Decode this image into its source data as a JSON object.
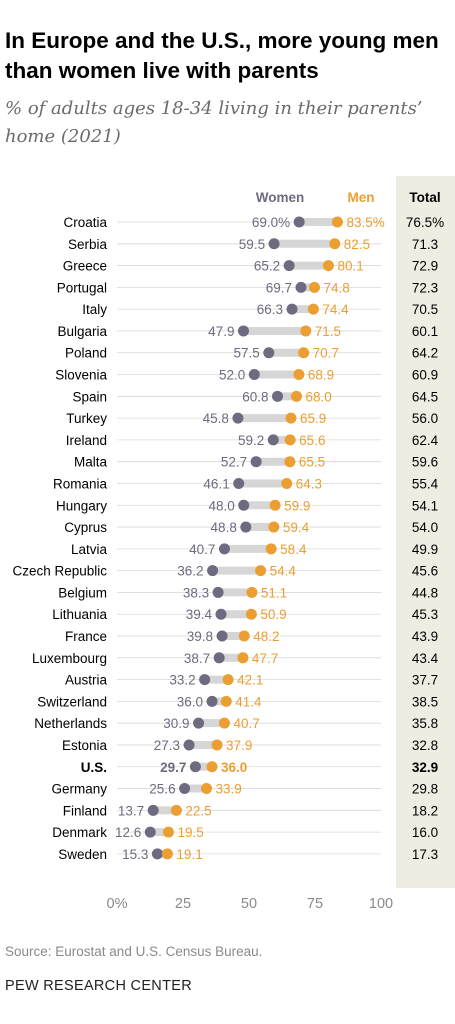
{
  "title": "In Europe and the U.S., more young men than women live with parents",
  "subtitle": "% of adults ages 18-34 living in their parents’ home (2021)",
  "source": "Source: Eurostat and U.S. Census Bureau.",
  "brand": "PEW RESEARCH CENTER",
  "colors": {
    "women": "#6e6a7f",
    "men": "#eb9f33",
    "connector": "#d6d6d6",
    "total_bg": "#efece1",
    "grid": "#d9d9d9",
    "axis_text": "#8a8a8a",
    "label_text": "#000000"
  },
  "chart_data": {
    "type": "dot",
    "legend": {
      "women": "Women",
      "men": "Men",
      "total": "Total"
    },
    "x_ticks": [
      {
        "value": 0,
        "label": "0%"
      },
      {
        "value": 25,
        "label": "25"
      },
      {
        "value": 50,
        "label": "50"
      },
      {
        "value": 75,
        "label": "75"
      },
      {
        "value": 100,
        "label": "100"
      }
    ],
    "xlim": [
      0,
      100
    ],
    "rows": [
      {
        "country": "Croatia",
        "women": 69.0,
        "men": 83.5,
        "total": 76.5,
        "women_label": "69.0%",
        "men_label": "83.5%",
        "total_label": "76.5%",
        "bold": false
      },
      {
        "country": "Serbia",
        "women": 59.5,
        "men": 82.5,
        "total": 71.3,
        "women_label": "59.5",
        "men_label": "82.5",
        "total_label": "71.3",
        "bold": false
      },
      {
        "country": "Greece",
        "women": 65.2,
        "men": 80.1,
        "total": 72.9,
        "women_label": "65.2",
        "men_label": "80.1",
        "total_label": "72.9",
        "bold": false
      },
      {
        "country": "Portugal",
        "women": 69.7,
        "men": 74.8,
        "total": 72.3,
        "women_label": "69.7",
        "men_label": "74.8",
        "total_label": "72.3",
        "bold": false
      },
      {
        "country": "Italy",
        "women": 66.3,
        "men": 74.4,
        "total": 70.5,
        "women_label": "66.3",
        "men_label": "74.4",
        "total_label": "70.5",
        "bold": false
      },
      {
        "country": "Bulgaria",
        "women": 47.9,
        "men": 71.5,
        "total": 60.1,
        "women_label": "47.9",
        "men_label": "71.5",
        "total_label": "60.1",
        "bold": false
      },
      {
        "country": "Poland",
        "women": 57.5,
        "men": 70.7,
        "total": 64.2,
        "women_label": "57.5",
        "men_label": "70.7",
        "total_label": "64.2",
        "bold": false
      },
      {
        "country": "Slovenia",
        "women": 52.0,
        "men": 68.9,
        "total": 60.9,
        "women_label": "52.0",
        "men_label": "68.9",
        "total_label": "60.9",
        "bold": false
      },
      {
        "country": "Spain",
        "women": 60.8,
        "men": 68.0,
        "total": 64.5,
        "women_label": "60.8",
        "men_label": "68.0",
        "total_label": "64.5",
        "bold": false
      },
      {
        "country": "Turkey",
        "women": 45.8,
        "men": 65.9,
        "total": 56.0,
        "women_label": "45.8",
        "men_label": "65.9",
        "total_label": "56.0",
        "bold": false
      },
      {
        "country": "Ireland",
        "women": 59.2,
        "men": 65.6,
        "total": 62.4,
        "women_label": "59.2",
        "men_label": "65.6",
        "total_label": "62.4",
        "bold": false
      },
      {
        "country": "Malta",
        "women": 52.7,
        "men": 65.5,
        "total": 59.6,
        "women_label": "52.7",
        "men_label": "65.5",
        "total_label": "59.6",
        "bold": false
      },
      {
        "country": "Romania",
        "women": 46.1,
        "men": 64.3,
        "total": 55.4,
        "women_label": "46.1",
        "men_label": "64.3",
        "total_label": "55.4",
        "bold": false
      },
      {
        "country": "Hungary",
        "women": 48.0,
        "men": 59.9,
        "total": 54.1,
        "women_label": "48.0",
        "men_label": "59.9",
        "total_label": "54.1",
        "bold": false
      },
      {
        "country": "Cyprus",
        "women": 48.8,
        "men": 59.4,
        "total": 54.0,
        "women_label": "48.8",
        "men_label": "59.4",
        "total_label": "54.0",
        "bold": false
      },
      {
        "country": "Latvia",
        "women": 40.7,
        "men": 58.4,
        "total": 49.9,
        "women_label": "40.7",
        "men_label": "58.4",
        "total_label": "49.9",
        "bold": false
      },
      {
        "country": "Czech Republic",
        "women": 36.2,
        "men": 54.4,
        "total": 45.6,
        "women_label": "36.2",
        "men_label": "54.4",
        "total_label": "45.6",
        "bold": false
      },
      {
        "country": "Belgium",
        "women": 38.3,
        "men": 51.1,
        "total": 44.8,
        "women_label": "38.3",
        "men_label": "51.1",
        "total_label": "44.8",
        "bold": false
      },
      {
        "country": "Lithuania",
        "women": 39.4,
        "men": 50.9,
        "total": 45.3,
        "women_label": "39.4",
        "men_label": "50.9",
        "total_label": "45.3",
        "bold": false
      },
      {
        "country": "France",
        "women": 39.8,
        "men": 48.2,
        "total": 43.9,
        "women_label": "39.8",
        "men_label": "48.2",
        "total_label": "43.9",
        "bold": false
      },
      {
        "country": "Luxembourg",
        "women": 38.7,
        "men": 47.7,
        "total": 43.4,
        "women_label": "38.7",
        "men_label": "47.7",
        "total_label": "43.4",
        "bold": false
      },
      {
        "country": "Austria",
        "women": 33.2,
        "men": 42.1,
        "total": 37.7,
        "women_label": "33.2",
        "men_label": "42.1",
        "total_label": "37.7",
        "bold": false
      },
      {
        "country": "Switzerland",
        "women": 36.0,
        "men": 41.4,
        "total": 38.5,
        "women_label": "36.0",
        "men_label": "41.4",
        "total_label": "38.5",
        "bold": false
      },
      {
        "country": "Netherlands",
        "women": 30.9,
        "men": 40.7,
        "total": 35.8,
        "women_label": "30.9",
        "men_label": "40.7",
        "total_label": "35.8",
        "bold": false
      },
      {
        "country": "Estonia",
        "women": 27.3,
        "men": 37.9,
        "total": 32.8,
        "women_label": "27.3",
        "men_label": "37.9",
        "total_label": "32.8",
        "bold": false
      },
      {
        "country": "U.S.",
        "women": 29.7,
        "men": 36.0,
        "total": 32.9,
        "women_label": "29.7",
        "men_label": "36.0",
        "total_label": "32.9",
        "bold": true
      },
      {
        "country": "Germany",
        "women": 25.6,
        "men": 33.9,
        "total": 29.8,
        "women_label": "25.6",
        "men_label": "33.9",
        "total_label": "29.8",
        "bold": false
      },
      {
        "country": "Finland",
        "women": 13.7,
        "men": 22.5,
        "total": 18.2,
        "women_label": "13.7",
        "men_label": "22.5",
        "total_label": "18.2",
        "bold": false
      },
      {
        "country": "Denmark",
        "women": 12.6,
        "men": 19.5,
        "total": 16.0,
        "women_label": "12.6",
        "men_label": "19.5",
        "total_label": "16.0",
        "bold": false
      },
      {
        "country": "Sweden",
        "women": 15.3,
        "men": 19.1,
        "total": 17.3,
        "women_label": "15.3",
        "men_label": "19.1",
        "total_label": "17.3",
        "bold": false
      }
    ]
  }
}
